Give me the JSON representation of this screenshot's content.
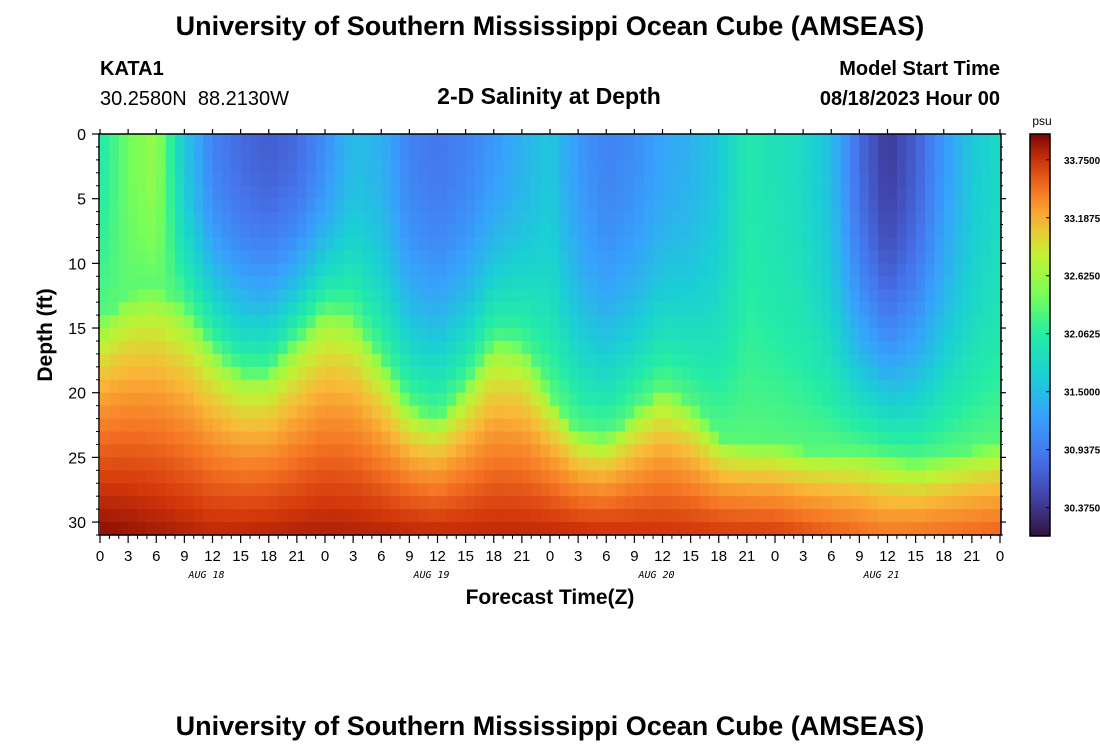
{
  "header": {
    "main_title": "University of Southern Mississippi Ocean Cube (AMSEAS)",
    "station_id": "KATA1",
    "station_coords": "30.2580N  88.2130W",
    "plot_title": "2-D Salinity at Depth",
    "model_start_label": "Model Start Time",
    "model_start_value": "08/18/2023 Hour 00"
  },
  "footer": {
    "repeat_title": "University of Southern Mississippi Ocean Cube (AMSEAS)"
  },
  "chart_data": {
    "type": "heatmap",
    "title": "2-D Salinity at Depth",
    "xlabel": "Forecast Time(Z)",
    "ylabel": "Depth (ft)",
    "x_hours_range": [
      0,
      96
    ],
    "xticks": [
      "0",
      "3",
      "6",
      "9",
      "12",
      "15",
      "18",
      "21",
      "0",
      "3",
      "6",
      "9",
      "12",
      "15",
      "18",
      "21",
      "0",
      "3",
      "6",
      "9",
      "12",
      "15",
      "18",
      "21",
      "0",
      "3",
      "6",
      "9",
      "12",
      "15",
      "18",
      "21",
      "0"
    ],
    "day_labels": [
      "AUG 18",
      "AUG 19",
      "AUG 20",
      "AUG 21"
    ],
    "ylim": [
      0,
      31
    ],
    "yticks": [
      0,
      5,
      10,
      15,
      20,
      25,
      30
    ],
    "ytick_labels": [
      "0",
      "5",
      "10",
      "15",
      "20",
      "25",
      "30"
    ],
    "colorbar": {
      "unit": "psu",
      "range": [
        30.1,
        34.0
      ],
      "tick_values": [
        33.75,
        33.1875,
        32.625,
        32.0625,
        31.5,
        30.9375,
        30.375
      ],
      "tick_labels": [
        "33.7500",
        "33.1875",
        "32.6250",
        "32.0625",
        "31.5000",
        "30.9375",
        "30.3750"
      ]
    },
    "halocline_depth_ft": {
      "time_hours": [
        0,
        3,
        6,
        9,
        12,
        15,
        18,
        21,
        24,
        27,
        30,
        33,
        36,
        39,
        42,
        45,
        48,
        51,
        54,
        57,
        60,
        63,
        66,
        69,
        72,
        75,
        78,
        81,
        84,
        87,
        90,
        93,
        96
      ],
      "depth": [
        14.5,
        12.5,
        12.0,
        13.5,
        16.5,
        18.5,
        18.5,
        16.0,
        13.5,
        14.0,
        17.5,
        21.0,
        22.0,
        19.5,
        16.0,
        16.5,
        20.0,
        23.0,
        23.5,
        21.5,
        19.5,
        21.0,
        23.5,
        24.0,
        24.0,
        24.5,
        24.5,
        24.5,
        25.0,
        25.5,
        25.0,
        24.5,
        24.0
      ]
    },
    "surface_salinity_psu": {
      "time_hours": [
        0,
        3,
        6,
        9,
        12,
        15,
        18,
        21,
        24,
        27,
        30,
        33,
        36,
        39,
        42,
        45,
        48,
        51,
        54,
        57,
        60,
        63,
        66,
        69,
        72,
        75,
        78,
        81,
        84,
        87,
        90,
        93,
        96
      ],
      "salinity": [
        32.0,
        32.4,
        32.6,
        31.6,
        31.0,
        30.8,
        30.7,
        30.8,
        31.1,
        31.5,
        31.4,
        31.0,
        30.9,
        31.0,
        31.2,
        31.4,
        31.6,
        31.2,
        31.0,
        31.1,
        31.3,
        31.4,
        31.6,
        32.0,
        31.9,
        31.8,
        31.5,
        30.8,
        30.4,
        30.7,
        31.2,
        31.6,
        31.8
      ]
    },
    "bottom_salinity_psu": {
      "time_hours": [
        0,
        12,
        24,
        36,
        48,
        60,
        72,
        84,
        96
      ],
      "salinity": [
        33.95,
        33.8,
        33.85,
        33.8,
        33.8,
        33.75,
        33.7,
        33.45,
        33.55
      ]
    }
  }
}
